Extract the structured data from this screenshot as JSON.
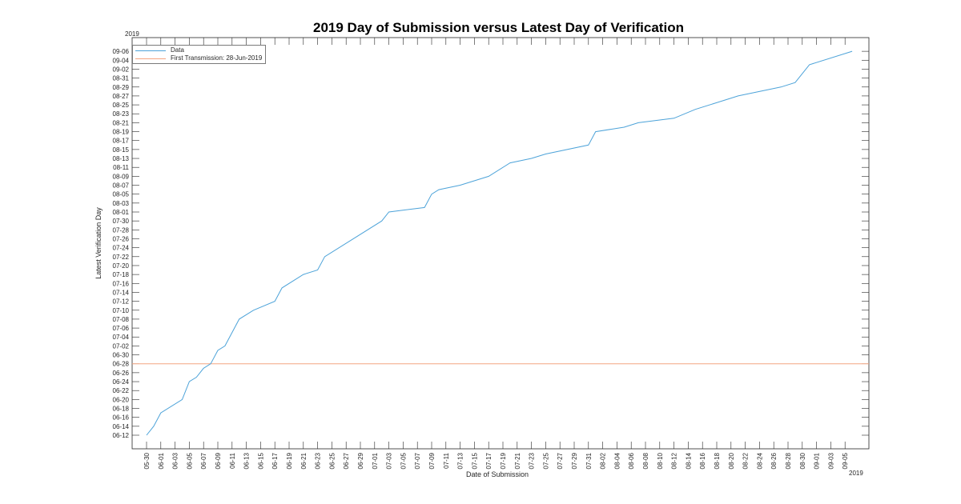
{
  "chart_data": {
    "type": "line",
    "title": "2019 Day of Submission versus Latest Day of Verification",
    "xlabel": "Date of Submission",
    "ylabel": "Latest Verification Day",
    "x_year_label": "2019",
    "y_year_label": "2019",
    "grid": false,
    "legend_position": "upper-left",
    "xlim": [
      "05-30",
      "09-06"
    ],
    "ylim": [
      "06-10",
      "09-07"
    ],
    "x_ticks": [
      "05-30",
      "06-01",
      "06-03",
      "06-05",
      "06-07",
      "06-09",
      "06-11",
      "06-13",
      "06-15",
      "06-17",
      "06-19",
      "06-21",
      "06-23",
      "06-25",
      "06-27",
      "06-29",
      "07-01",
      "07-03",
      "07-05",
      "07-07",
      "07-09",
      "07-11",
      "07-13",
      "07-15",
      "07-17",
      "07-19",
      "07-21",
      "07-23",
      "07-25",
      "07-27",
      "07-29",
      "07-31",
      "08-02",
      "08-04",
      "08-06",
      "08-08",
      "08-10",
      "08-12",
      "08-14",
      "08-16",
      "08-18",
      "08-20",
      "08-22",
      "08-24",
      "08-26",
      "08-28",
      "08-30",
      "09-01",
      "09-03",
      "09-05"
    ],
    "y_ticks": [
      "06-12",
      "06-14",
      "06-16",
      "06-18",
      "06-20",
      "06-22",
      "06-24",
      "06-26",
      "06-28",
      "06-30",
      "07-02",
      "07-04",
      "07-06",
      "07-08",
      "07-10",
      "07-12",
      "07-14",
      "07-16",
      "07-18",
      "07-20",
      "07-22",
      "07-24",
      "07-26",
      "07-28",
      "07-30",
      "08-01",
      "08-03",
      "08-05",
      "08-07",
      "08-09",
      "08-11",
      "08-13",
      "08-15",
      "08-17",
      "08-19",
      "08-21",
      "08-23",
      "08-25",
      "08-27",
      "08-29",
      "08-31",
      "09-02",
      "09-04",
      "09-06"
    ],
    "series": [
      {
        "name": "Data",
        "color": "#4DA3D9",
        "x": [
          "05-30",
          "05-31",
          "06-01",
          "06-04",
          "06-05",
          "06-06",
          "06-07",
          "06-08",
          "06-09",
          "06-10",
          "06-12",
          "06-14",
          "06-17",
          "06-18",
          "06-21",
          "06-23",
          "06-24",
          "07-02",
          "07-03",
          "07-08",
          "07-09",
          "07-10",
          "07-13",
          "07-17",
          "07-20",
          "07-23",
          "07-25",
          "07-31",
          "08-01",
          "08-05",
          "08-07",
          "08-12",
          "08-15",
          "08-19",
          "08-21",
          "08-27",
          "08-29",
          "08-31",
          "09-06"
        ],
        "y": [
          "06-12",
          "06-14",
          "06-17",
          "06-20",
          "06-24",
          "06-25",
          "06-27",
          "06-28",
          "07-01",
          "07-02",
          "07-08",
          "07-10",
          "07-12",
          "07-15",
          "07-18",
          "07-19",
          "07-22",
          "07-30",
          "08-01",
          "08-02",
          "08-05",
          "08-06",
          "08-07",
          "08-09",
          "08-12",
          "08-13",
          "08-14",
          "08-16",
          "08-19",
          "08-20",
          "08-21",
          "08-22",
          "08-24",
          "08-26",
          "08-27",
          "08-29",
          "08-30",
          "09-03",
          "09-06"
        ]
      },
      {
        "name": "First Transmission: 28-Jun-2019",
        "color": "#F4A582",
        "type": "hline",
        "y": "06-28"
      }
    ]
  },
  "legend": {
    "items": [
      {
        "label": "Data",
        "color": "#4DA3D9"
      },
      {
        "label": "First Transmission: 28-Jun-2019",
        "color": "#F4A582"
      }
    ]
  }
}
